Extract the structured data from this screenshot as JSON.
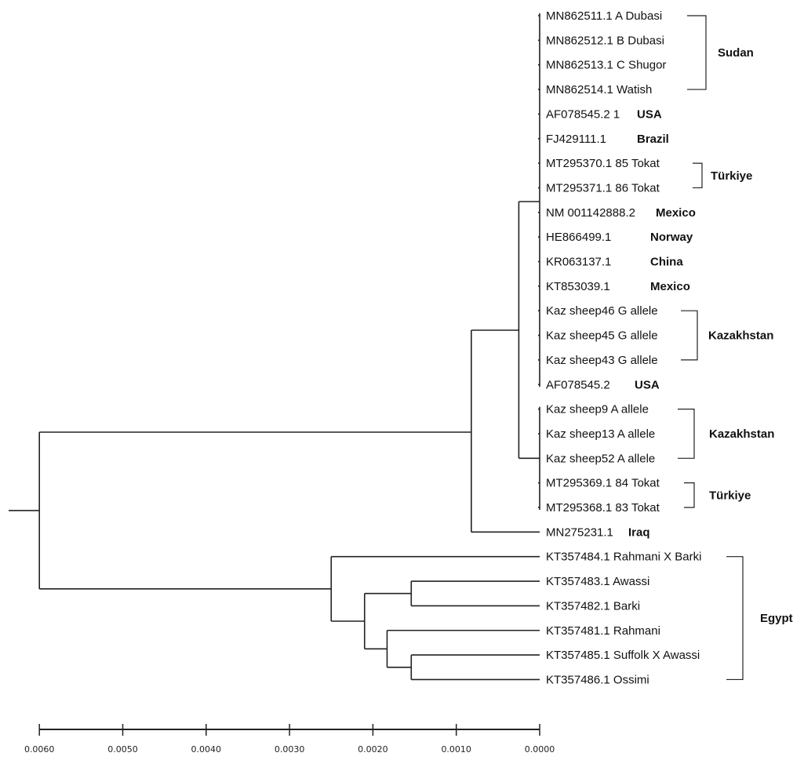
{
  "figure": {
    "type": "phylogenetic-tree",
    "scale_axis": {
      "direction": "reversed",
      "ticks": [
        "0.0060",
        "0.0050",
        "0.0040",
        "0.0030",
        "0.0020",
        "0.0010",
        "0.0000"
      ],
      "tick_values": [
        0.006,
        0.005,
        0.004,
        0.003,
        0.002,
        0.001,
        0.0
      ]
    },
    "leaves": [
      {
        "id": "MN862511.1 A Dubasi",
        "country": ""
      },
      {
        "id": "MN862512.1 B Dubasi",
        "country": ""
      },
      {
        "id": "MN862513.1 C Shugor",
        "country": ""
      },
      {
        "id": "MN862514.1 Watish",
        "country": ""
      },
      {
        "id": "AF078545.2 1",
        "country": "USA"
      },
      {
        "id": "FJ429111.1",
        "country": "Brazil"
      },
      {
        "id": "MT295370.1 85 Tokat",
        "country": ""
      },
      {
        "id": "MT295371.1 86 Tokat",
        "country": ""
      },
      {
        "id": "NM 001142888.2",
        "country": "Mexico"
      },
      {
        "id": "HE866499.1",
        "country": "Norway"
      },
      {
        "id": "KR063137.1",
        "country": "China"
      },
      {
        "id": "KT853039.1",
        "country": "Mexico"
      },
      {
        "id": "Kaz sheep46 G allele",
        "country": ""
      },
      {
        "id": "Kaz sheep45 G allele",
        "country": ""
      },
      {
        "id": "Kaz sheep43 G allele",
        "country": ""
      },
      {
        "id": "AF078545.2",
        "country": "USA"
      },
      {
        "id": "Kaz sheep9 A allele",
        "country": ""
      },
      {
        "id": "Kaz sheep13 A allele",
        "country": ""
      },
      {
        "id": "Kaz sheep52 A allele",
        "country": ""
      },
      {
        "id": "MT295369.1 84 Tokat",
        "country": ""
      },
      {
        "id": "MT295368.1 83 Tokat",
        "country": ""
      },
      {
        "id": "MN275231.1",
        "country": "Iraq"
      },
      {
        "id": "KT357484.1 Rahmani X Barki",
        "country": ""
      },
      {
        "id": "KT357483.1 Awassi",
        "country": ""
      },
      {
        "id": "KT357482.1 Barki",
        "country": ""
      },
      {
        "id": "KT357481.1 Rahmani",
        "country": ""
      },
      {
        "id": "KT357485.1 Suffolk X Awassi",
        "country": ""
      },
      {
        "id": "KT357486.1 Ossimi",
        "country": ""
      }
    ],
    "groups": [
      {
        "label": "Sudan",
        "from": 0,
        "to": 3
      },
      {
        "label": "Türkiye",
        "from": 6,
        "to": 7
      },
      {
        "label": "Kazakhstan",
        "from": 12,
        "to": 14
      },
      {
        "label": "Kazakhstan",
        "from": 16,
        "to": 18
      },
      {
        "label": "Türkiye",
        "from": 19,
        "to": 20
      },
      {
        "label": "Egypt",
        "from": 22,
        "to": 27
      }
    ],
    "nodes": [
      {
        "name": "clade-upper",
        "height": 0.0,
        "children_leaves": [
          0,
          15
        ]
      },
      {
        "name": "clade-kaz-a-tokat",
        "height": 0.0,
        "children_leaves": [
          16,
          20
        ]
      },
      {
        "name": "node-upper-lower",
        "height": 0.00025,
        "children": [
          "clade-upper",
          "clade-kaz-a-tokat"
        ]
      },
      {
        "name": "node-with-iraq",
        "height": 0.00082,
        "children": [
          "node-upper-lower",
          "leaf-21"
        ]
      },
      {
        "name": "node-awassi-barki",
        "height": 0.00154,
        "children": [
          "leaf-23",
          "leaf-24"
        ]
      },
      {
        "name": "node-suffolk-ossimi",
        "height": 0.00154,
        "children": [
          "leaf-26",
          "leaf-27"
        ]
      },
      {
        "name": "node-rahmani-sub",
        "height": 0.00183,
        "children": [
          "leaf-25",
          "node-suffolk-ossimi"
        ]
      },
      {
        "name": "node-egypt-inner",
        "height": 0.0021,
        "children": [
          "node-awassi-barki",
          "node-rahmani-sub"
        ]
      },
      {
        "name": "node-egypt",
        "height": 0.0025,
        "children": [
          "leaf-22",
          "node-egypt-inner"
        ]
      },
      {
        "name": "root",
        "height": 0.006,
        "children": [
          "node-with-iraq",
          "node-egypt"
        ]
      }
    ]
  }
}
